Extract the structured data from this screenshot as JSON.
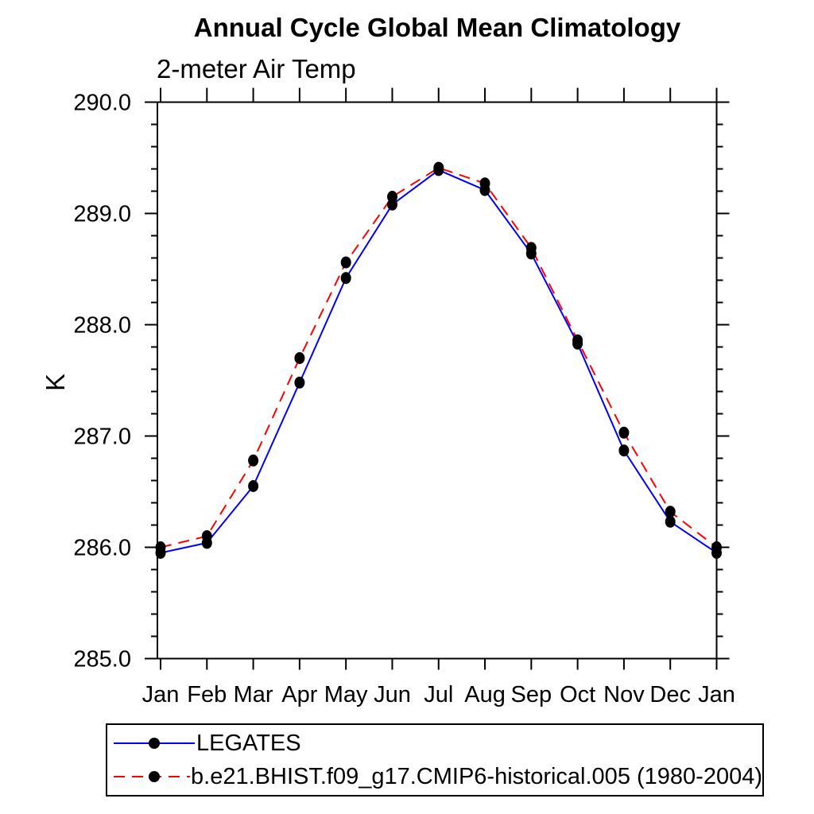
{
  "title": "Annual Cycle Global Mean Climatology",
  "subtitle": "2-meter Air Temp",
  "chart_data": {
    "type": "line",
    "categories": [
      "Jan",
      "Feb",
      "Mar",
      "Apr",
      "May",
      "Jun",
      "Jul",
      "Aug",
      "Sep",
      "Oct",
      "Nov",
      "Dec",
      "Jan"
    ],
    "series": [
      {
        "name": "LEGATES",
        "color": "#0000ff",
        "line_style": "solid",
        "marker": "filled-circle",
        "marker_color": "#000000",
        "values": [
          285.95,
          286.04,
          286.55,
          287.48,
          288.42,
          289.08,
          289.39,
          289.21,
          288.64,
          287.83,
          286.87,
          286.23,
          285.95
        ]
      },
      {
        "name": "b.e21.BHIST.f09_g17.CMIP6-historical.005 (1980-2004)",
        "color": "#ff0000",
        "line_style": "dashed",
        "marker": "filled-circle",
        "marker_color": "#000000",
        "values": [
          286.0,
          286.1,
          286.78,
          287.7,
          288.56,
          289.15,
          289.41,
          289.27,
          288.69,
          287.86,
          287.03,
          286.32,
          286.0
        ]
      }
    ],
    "xlabel": "",
    "ylabel": "K",
    "ylim": [
      285.0,
      290.0
    ],
    "ytick_major_step": 1.0,
    "ytick_minor_step": 0.2,
    "ytick_labels": [
      "285.0",
      "286.0",
      "287.0",
      "288.0",
      "289.0",
      "290.0"
    ],
    "grid": false,
    "legend_position": "bottom-left",
    "axis_color": "#000000"
  }
}
